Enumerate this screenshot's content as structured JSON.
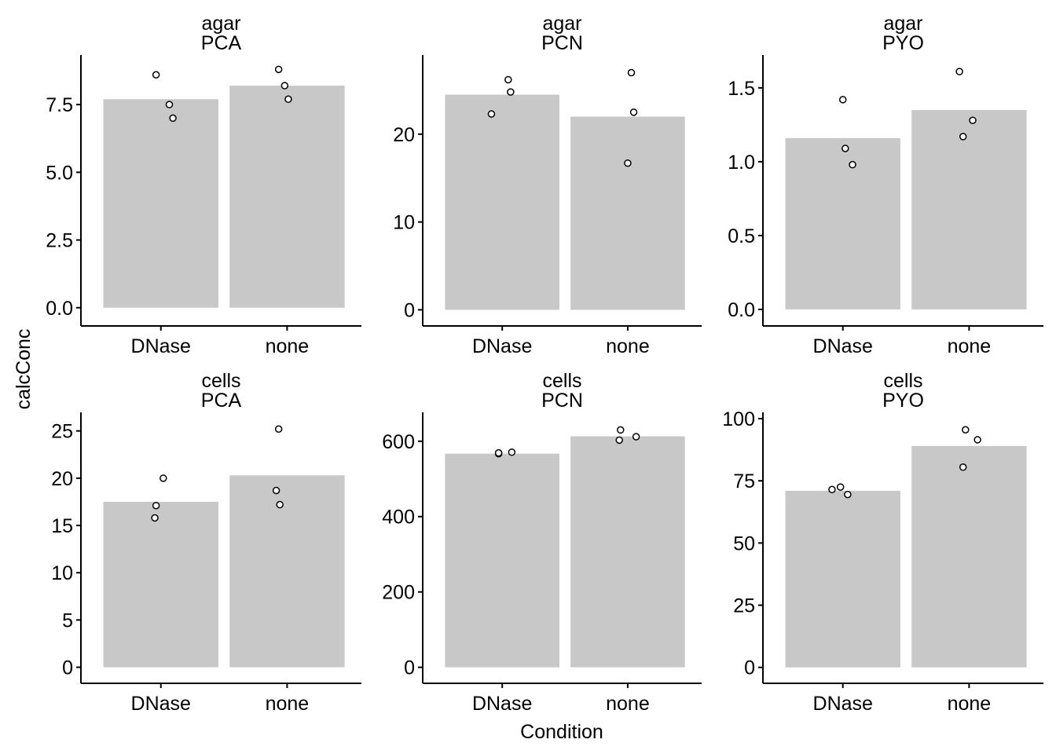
{
  "chart_data": {
    "type": "bar",
    "layout": "facet-grid 2x3",
    "xlabel": "Condition",
    "ylabel": "calcConc",
    "grid": false,
    "colors": {
      "bar": "#c8c8c8",
      "point_fill": "#ffffff",
      "point_stroke": "#000000",
      "axis": "#000000"
    },
    "categories": [
      "DNase",
      "none"
    ],
    "panels": [
      {
        "strip": [
          "agar",
          "PCA"
        ],
        "ylim": [
          -0.5,
          9.1
        ],
        "yticks": [
          0,
          2.5,
          5,
          7.5
        ],
        "ytick_labels": [
          "0.0",
          "2.5",
          "5.0",
          "7.5"
        ],
        "bars": [
          7.7,
          8.2
        ],
        "points": [
          [
            8.6,
            7.5,
            7.0
          ],
          [
            8.8,
            8.2,
            7.7
          ]
        ],
        "point_offsets": [
          [
            -0.04,
            0.07,
            0.1
          ],
          [
            -0.07,
            -0.02,
            0.01
          ]
        ]
      },
      {
        "strip": [
          "agar",
          "PCN"
        ],
        "ylim": [
          -1.3,
          28.3
        ],
        "yticks": [
          0,
          10,
          20
        ],
        "ytick_labels": [
          "0",
          "10",
          "20"
        ],
        "bars": [
          24.5,
          22.0
        ],
        "points": [
          [
            26.2,
            24.8,
            22.3
          ],
          [
            27.0,
            22.5,
            16.7
          ]
        ],
        "point_offsets": [
          [
            0.05,
            0.07,
            -0.09
          ],
          [
            0.03,
            0.05,
            0.0
          ]
        ]
      },
      {
        "strip": [
          "agar",
          "PYO"
        ],
        "ylim": [
          -0.08,
          1.68
        ],
        "yticks": [
          0,
          0.5,
          1.0,
          1.5
        ],
        "ytick_labels": [
          "0.0",
          "0.5",
          "1.0",
          "1.5"
        ],
        "bars": [
          1.16,
          1.35
        ],
        "points": [
          [
            1.42,
            1.09,
            0.98
          ],
          [
            1.61,
            1.28,
            1.17
          ]
        ],
        "point_offsets": [
          [
            0.0,
            0.02,
            0.08
          ],
          [
            -0.08,
            0.03,
            -0.05
          ]
        ]
      },
      {
        "strip": [
          "cells",
          "PCA"
        ],
        "ylim": [
          -1.2,
          26.3
        ],
        "yticks": [
          0,
          5,
          10,
          15,
          20,
          25
        ],
        "ytick_labels": [
          "0",
          "5",
          "10",
          "15",
          "20",
          "25"
        ],
        "bars": [
          17.5,
          20.3
        ],
        "points": [
          [
            20.0,
            17.1,
            15.8
          ],
          [
            25.2,
            18.7,
            17.2
          ]
        ],
        "point_offsets": [
          [
            0.02,
            -0.04,
            -0.05
          ],
          [
            -0.07,
            -0.09,
            -0.06
          ]
        ]
      },
      {
        "strip": [
          "cells",
          "PCN"
        ],
        "ylim": [
          -30,
          660
        ],
        "yticks": [
          0,
          200,
          400,
          600
        ],
        "ytick_labels": [
          "0",
          "200",
          "400",
          "600"
        ],
        "bars": [
          567,
          613
        ],
        "points": [
          [
            567,
            569,
            571
          ],
          [
            630,
            603,
            612
          ]
        ],
        "point_offsets": [
          [
            -0.03,
            -0.03,
            0.08
          ],
          [
            -0.06,
            -0.07,
            0.07
          ]
        ]
      },
      {
        "strip": [
          "cells",
          "PYO"
        ],
        "ylim": [
          -4.5,
          100
        ],
        "yticks": [
          0,
          25,
          50,
          75,
          100
        ],
        "ytick_labels": [
          "0",
          "25",
          "50",
          "75",
          "100"
        ],
        "bars": [
          71,
          89
        ],
        "points": [
          [
            71.5,
            72.5,
            69.5
          ],
          [
            95.5,
            91.5,
            80.5
          ]
        ],
        "point_offsets": [
          [
            -0.09,
            -0.02,
            0.04
          ],
          [
            -0.03,
            0.07,
            -0.05
          ]
        ]
      }
    ]
  }
}
